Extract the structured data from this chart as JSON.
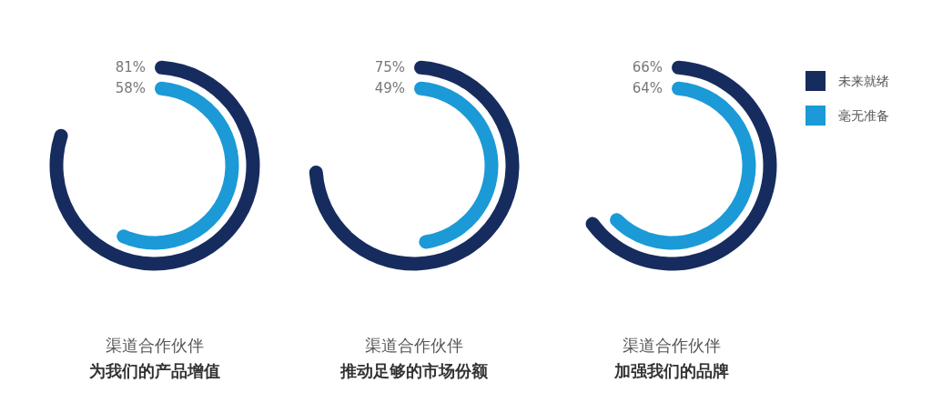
{
  "chart_data": [
    {
      "type": "other",
      "title": "渠道合作伙伴",
      "subtitle": "为我们的产品增值",
      "categories": [
        null,
        null
      ],
      "values": [
        81,
        58
      ],
      "value_labels": [
        "81%",
        "58%"
      ],
      "colors": [
        "#172c5e",
        "#1b9ad7"
      ]
    },
    {
      "type": "other",
      "title": "渠道合作伙伴",
      "subtitle": "推动足够的市场份额",
      "categories": [
        null,
        null
      ],
      "values": [
        75,
        49
      ],
      "value_labels": [
        "75%",
        "49%"
      ],
      "colors": [
        "#172c5e",
        "#1b9ad7"
      ]
    },
    {
      "type": "other",
      "title": "渠道合作伙伴",
      "subtitle": "加强我们的品牌",
      "categories": [
        "未来就绪",
        "毫无准备"
      ],
      "values": [
        66,
        64
      ],
      "value_labels": [
        "66%",
        "64%"
      ],
      "colors": [
        "#172c5e",
        "#1b9ad7"
      ]
    }
  ]
}
